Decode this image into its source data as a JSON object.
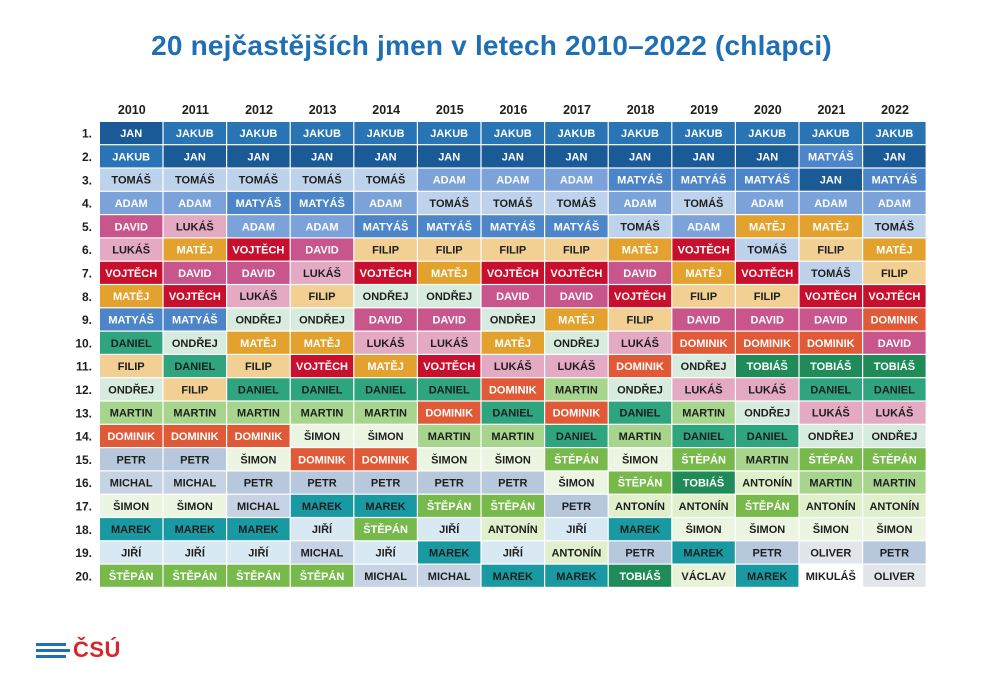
{
  "title": "20 nejčastějších jmen v letech 2010–2022 (chlapci)",
  "logo_text": "ČSÚ",
  "chart_data": {
    "type": "table",
    "title": "20 nejčastějších jmen v letech 2010–2022 (chlapci)",
    "columns": [
      "2010",
      "2011",
      "2012",
      "2013",
      "2014",
      "2015",
      "2016",
      "2017",
      "2018",
      "2019",
      "2020",
      "2021",
      "2022"
    ],
    "row_labels": [
      "1.",
      "2.",
      "3.",
      "4.",
      "5.",
      "6.",
      "7.",
      "8.",
      "9.",
      "10.",
      "11.",
      "12.",
      "13.",
      "14.",
      "15.",
      "16.",
      "17.",
      "18.",
      "19.",
      "20."
    ],
    "rows": [
      [
        "JAN",
        "JAKUB",
        "JAKUB",
        "JAKUB",
        "JAKUB",
        "JAKUB",
        "JAKUB",
        "JAKUB",
        "JAKUB",
        "JAKUB",
        "JAKUB",
        "JAKUB",
        "JAKUB"
      ],
      [
        "JAKUB",
        "JAN",
        "JAN",
        "JAN",
        "JAN",
        "JAN",
        "JAN",
        "JAN",
        "JAN",
        "JAN",
        "JAN",
        "MATYÁŠ",
        "JAN"
      ],
      [
        "TOMÁŠ",
        "TOMÁŠ",
        "TOMÁŠ",
        "TOMÁŠ",
        "TOMÁŠ",
        "ADAM",
        "ADAM",
        "ADAM",
        "MATYÁŠ",
        "MATYÁŠ",
        "MATYÁŠ",
        "JAN",
        "MATYÁŠ"
      ],
      [
        "ADAM",
        "ADAM",
        "MATYÁŠ",
        "MATYÁŠ",
        "ADAM",
        "TOMÁŠ",
        "TOMÁŠ",
        "TOMÁŠ",
        "ADAM",
        "TOMÁŠ",
        "ADAM",
        "ADAM",
        "ADAM"
      ],
      [
        "DAVID",
        "LUKÁŠ",
        "ADAM",
        "ADAM",
        "MATYÁŠ",
        "MATYÁŠ",
        "MATYÁŠ",
        "MATYÁŠ",
        "TOMÁŠ",
        "ADAM",
        "MATĚJ",
        "MATĚJ",
        "TOMÁŠ"
      ],
      [
        "LUKÁŠ",
        "MATĚJ",
        "VOJTĚCH",
        "DAVID",
        "FILIP",
        "FILIP",
        "FILIP",
        "FILIP",
        "MATĚJ",
        "VOJTĚCH",
        "TOMÁŠ",
        "FILIP",
        "MATĚJ"
      ],
      [
        "VOJTĚCH",
        "DAVID",
        "DAVID",
        "LUKÁŠ",
        "VOJTĚCH",
        "MATĚJ",
        "VOJTĚCH",
        "VOJTĚCH",
        "DAVID",
        "MATĚJ",
        "VOJTĚCH",
        "TOMÁŠ",
        "FILIP"
      ],
      [
        "MATĚJ",
        "VOJTĚCH",
        "LUKÁŠ",
        "FILIP",
        "ONDŘEJ",
        "ONDŘEJ",
        "DAVID",
        "DAVID",
        "VOJTĚCH",
        "FILIP",
        "FILIP",
        "VOJTĚCH",
        "VOJTĚCH"
      ],
      [
        "MATYÁŠ",
        "MATYÁŠ",
        "ONDŘEJ",
        "ONDŘEJ",
        "DAVID",
        "DAVID",
        "ONDŘEJ",
        "MATĚJ",
        "FILIP",
        "DAVID",
        "DAVID",
        "DAVID",
        "DOMINIK"
      ],
      [
        "DANIEL",
        "ONDŘEJ",
        "MATĚJ",
        "MATĚJ",
        "LUKÁŠ",
        "LUKÁŠ",
        "MATĚJ",
        "ONDŘEJ",
        "LUKÁŠ",
        "DOMINIK",
        "DOMINIK",
        "DOMINIK",
        "DAVID"
      ],
      [
        "FILIP",
        "DANIEL",
        "FILIP",
        "VOJTĚCH",
        "MATĚJ",
        "VOJTĚCH",
        "LUKÁŠ",
        "LUKÁŠ",
        "DOMINIK",
        "ONDŘEJ",
        "TOBIÁŠ",
        "TOBIÁŠ",
        "TOBIÁŠ"
      ],
      [
        "ONDŘEJ",
        "FILIP",
        "DANIEL",
        "DANIEL",
        "DANIEL",
        "DANIEL",
        "DOMINIK",
        "MARTIN",
        "ONDŘEJ",
        "LUKÁŠ",
        "LUKÁŠ",
        "DANIEL",
        "DANIEL"
      ],
      [
        "MARTIN",
        "MARTIN",
        "MARTIN",
        "MARTIN",
        "MARTIN",
        "DOMINIK",
        "DANIEL",
        "DOMINIK",
        "DANIEL",
        "MARTIN",
        "ONDŘEJ",
        "LUKÁŠ",
        "LUKÁŠ"
      ],
      [
        "DOMINIK",
        "DOMINIK",
        "DOMINIK",
        "ŠIMON",
        "ŠIMON",
        "MARTIN",
        "MARTIN",
        "DANIEL",
        "MARTIN",
        "DANIEL",
        "DANIEL",
        "ONDŘEJ",
        "ONDŘEJ"
      ],
      [
        "PETR",
        "PETR",
        "ŠIMON",
        "DOMINIK",
        "DOMINIK",
        "ŠIMON",
        "ŠIMON",
        "ŠTĚPÁN",
        "ŠIMON",
        "ŠTĚPÁN",
        "MARTIN",
        "ŠTĚPÁN",
        "ŠTĚPÁN"
      ],
      [
        "MICHAL",
        "MICHAL",
        "PETR",
        "PETR",
        "PETR",
        "PETR",
        "PETR",
        "ŠIMON",
        "ŠTĚPÁN",
        "TOBIÁŠ",
        "ANTONÍN",
        "MARTIN",
        "MARTIN"
      ],
      [
        "ŠIMON",
        "ŠIMON",
        "MICHAL",
        "MAREK",
        "MAREK",
        "ŠTĚPÁN",
        "ŠTĚPÁN",
        "PETR",
        "ANTONÍN",
        "ANTONÍN",
        "ŠTĚPÁN",
        "ANTONÍN",
        "ANTONÍN"
      ],
      [
        "MAREK",
        "MAREK",
        "MAREK",
        "JIŘÍ",
        "ŠTĚPÁN",
        "JIŘÍ",
        "ANTONÍN",
        "JIŘÍ",
        "MAREK",
        "ŠIMON",
        "ŠIMON",
        "ŠIMON",
        "ŠIMON"
      ],
      [
        "JIŘÍ",
        "JIŘÍ",
        "JIŘÍ",
        "MICHAL",
        "JIŘÍ",
        "MAREK",
        "JIŘÍ",
        "ANTONÍN",
        "PETR",
        "MAREK",
        "PETR",
        "OLIVER",
        "PETR"
      ],
      [
        "ŠTĚPÁN",
        "ŠTĚPÁN",
        "ŠTĚPÁN",
        "ŠTĚPÁN",
        "MICHAL",
        "MICHAL",
        "MAREK",
        "MAREK",
        "TOBIÁŠ",
        "VÁCLAV",
        "MAREK",
        "MIKULÁŠ",
        "OLIVER"
      ]
    ],
    "name_colors": {
      "JAN": {
        "bg": "#1a5a96",
        "fg": "#ffffff"
      },
      "JAKUB": {
        "bg": "#2874b4",
        "fg": "#ffffff"
      },
      "TOMÁŠ": {
        "bg": "#bed2ec",
        "fg": "#1e1e1e"
      },
      "ADAM": {
        "bg": "#7ba3d9",
        "fg": "#ffffff"
      },
      "MATYÁŠ": {
        "bg": "#4d86c8",
        "fg": "#ffffff"
      },
      "DAVID": {
        "bg": "#c8558c",
        "fg": "#ffffff"
      },
      "LUKÁŠ": {
        "bg": "#e4a9c3",
        "fg": "#1e1e1e"
      },
      "MATĚJ": {
        "bg": "#e3a12e",
        "fg": "#ffffff"
      },
      "VOJTĚCH": {
        "bg": "#c8102e",
        "fg": "#ffffff"
      },
      "FILIP": {
        "bg": "#f2cf92",
        "fg": "#1e1e1e"
      },
      "ONDŘEJ": {
        "bg": "#d7ebde",
        "fg": "#1e1e1e"
      },
      "DANIEL": {
        "bg": "#2ea57e",
        "fg": "#1e1e1e"
      },
      "DOMINIK": {
        "bg": "#e05a38",
        "fg": "#ffffff"
      },
      "MARTIN": {
        "bg": "#a8d58e",
        "fg": "#1e1e1e"
      },
      "ŠIMON": {
        "bg": "#ebf5e2",
        "fg": "#1e1e1e"
      },
      "PETR": {
        "bg": "#b7c7dc",
        "fg": "#1e1e1e"
      },
      "MICHAL": {
        "bg": "#c6d3e4",
        "fg": "#1e1e1e"
      },
      "MAREK": {
        "bg": "#199aa3",
        "fg": "#1e1e1e"
      },
      "JIŘÍ": {
        "bg": "#d9e9f4",
        "fg": "#1e1e1e"
      },
      "ŠTĚPÁN": {
        "bg": "#78b94b",
        "fg": "#ffffff"
      },
      "ANTONÍN": {
        "bg": "#e0f0cc",
        "fg": "#1e1e1e"
      },
      "TOBIÁŠ": {
        "bg": "#1f8b58",
        "fg": "#ffffff"
      },
      "OLIVER": {
        "bg": "#e2e5ea",
        "fg": "#1e1e1e"
      },
      "VÁCLAV": {
        "bg": "#e7f2d7",
        "fg": "#1e1e1e"
      },
      "MIKULÁŠ": {
        "bg": "#ffffff",
        "fg": "#1e1e1e"
      }
    },
    "accent_color": "#1f6fb5",
    "logo_color": "#d6272b"
  }
}
